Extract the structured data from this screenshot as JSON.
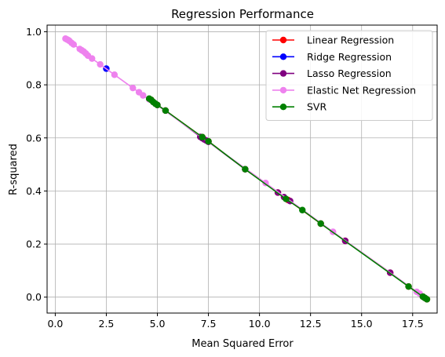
{
  "chart_data": {
    "type": "line",
    "title": "Regression Performance",
    "xlabel": "Mean Squared Error",
    "ylabel": "R-squared",
    "xlim": [
      -0.4,
      18.7
    ],
    "ylim": [
      -0.06,
      1.025
    ],
    "xticks": [
      0.0,
      2.5,
      5.0,
      7.5,
      10.0,
      12.5,
      15.0,
      17.5
    ],
    "xtick_labels": [
      "0.0",
      "2.5",
      "5.0",
      "7.5",
      "10.0",
      "12.5",
      "15.0",
      "17.5"
    ],
    "yticks": [
      0.0,
      0.2,
      0.4,
      0.6,
      0.8,
      1.0
    ],
    "ytick_labels": [
      "0.0",
      "0.2",
      "0.4",
      "0.6",
      "0.8",
      "1.0"
    ],
    "grid": true,
    "legend_position": "top-right",
    "series": [
      {
        "name": "Linear Regression",
        "color": "#ff0000",
        "x": [
          4.7,
          5.0,
          5.4,
          7.2,
          7.5,
          9.3,
          10.9,
          11.4,
          13.0,
          14.2,
          16.4,
          17.3,
          18.0,
          18.2
        ],
        "y": [
          0.743,
          0.724,
          0.703,
          0.603,
          0.587,
          0.482,
          0.394,
          0.366,
          0.277,
          0.212,
          0.092,
          0.04,
          0.002,
          -0.008
        ]
      },
      {
        "name": "Ridge Regression",
        "color": "#0000ff",
        "x": [
          2.5
        ],
        "y": [
          0.861
        ]
      },
      {
        "name": "Lasso Regression",
        "color": "#800080",
        "x": [
          4.8,
          5.0,
          5.4,
          7.1,
          7.2,
          7.3,
          7.4,
          7.5,
          9.3,
          10.9,
          11.2,
          11.5,
          14.2,
          16.4,
          18.0,
          18.1
        ],
        "y": [
          0.735,
          0.724,
          0.703,
          0.604,
          0.599,
          0.594,
          0.59,
          0.585,
          0.482,
          0.394,
          0.377,
          0.362,
          0.212,
          0.092,
          0.002,
          -0.003
        ]
      },
      {
        "name": "Elastic Net Regression",
        "color": "#ee82ee",
        "x": [
          0.5,
          0.55,
          0.6,
          0.65,
          0.7,
          0.8,
          0.9,
          1.2,
          1.3,
          1.4,
          1.5,
          1.6,
          1.8,
          2.2,
          2.9,
          3.8,
          4.1,
          4.3,
          4.6,
          10.3,
          13.6,
          17.7,
          17.85
        ],
        "y": [
          0.974,
          0.972,
          0.97,
          0.968,
          0.965,
          0.958,
          0.952,
          0.935,
          0.93,
          0.925,
          0.918,
          0.91,
          0.899,
          0.877,
          0.838,
          0.788,
          0.772,
          0.76,
          0.745,
          0.43,
          0.246,
          0.02,
          0.013
        ]
      },
      {
        "name": "SVR",
        "color": "#008000",
        "x": [
          4.6,
          4.7,
          4.8,
          4.9,
          5.0,
          5.4,
          7.2,
          7.5,
          9.3,
          11.3,
          12.1,
          13.0,
          17.3,
          18.0,
          18.1,
          18.2
        ],
        "y": [
          0.748,
          0.743,
          0.735,
          0.729,
          0.724,
          0.703,
          0.603,
          0.587,
          0.482,
          0.37,
          0.328,
          0.277,
          0.04,
          0.002,
          -0.003,
          -0.008
        ]
      }
    ]
  }
}
